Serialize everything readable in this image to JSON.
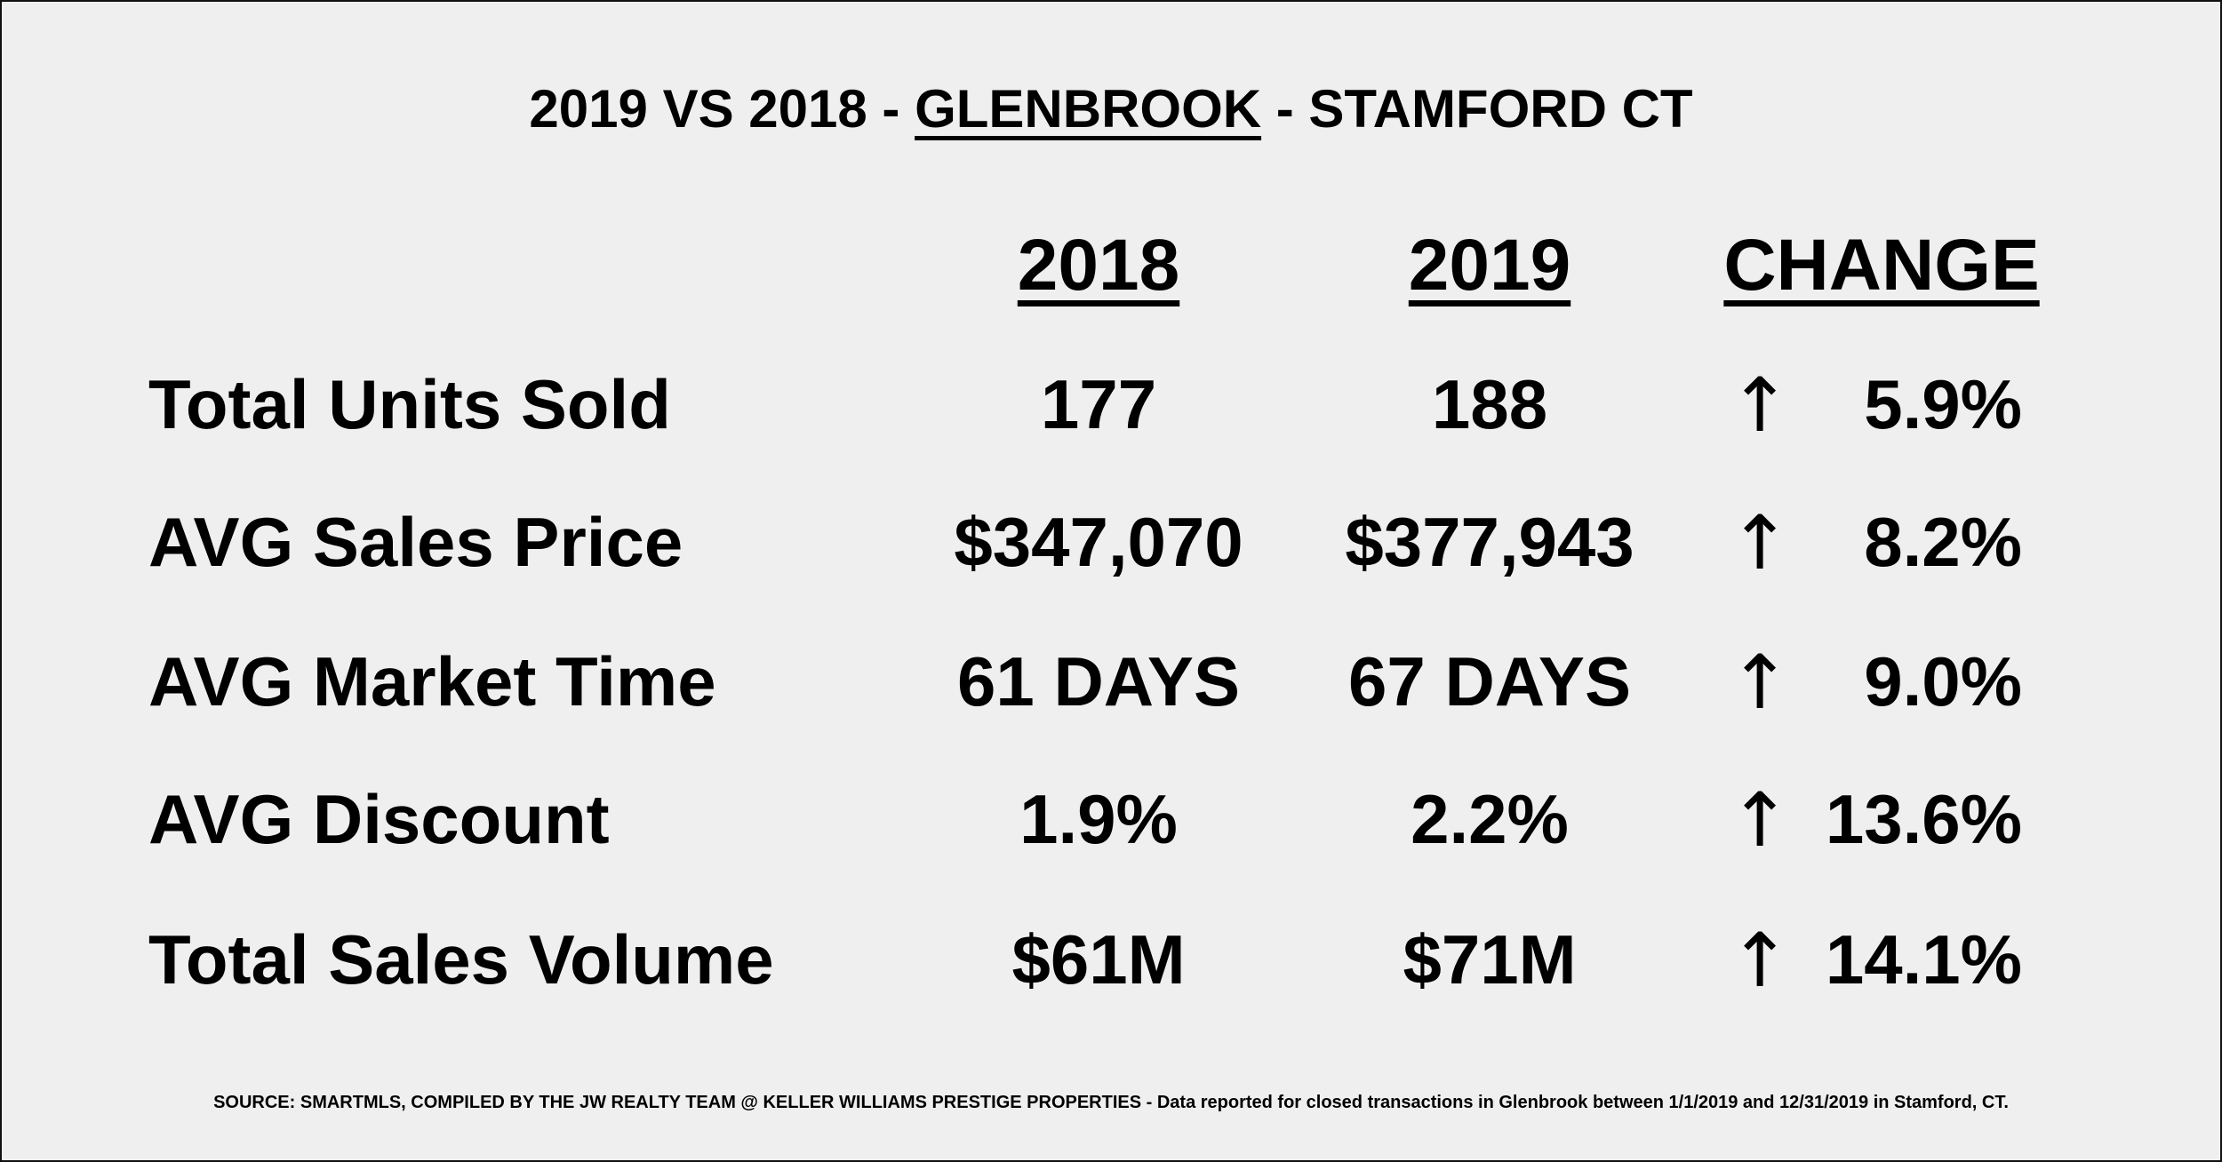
{
  "title": {
    "prefix": "2019 VS 2018 - ",
    "neighborhood": "GLENBROOK",
    "suffix": " - STAMFORD CT"
  },
  "headers": {
    "col_2018": "2018",
    "col_2019": "2019",
    "col_change": "CHANGE"
  },
  "rows": [
    {
      "label": "Total Units Sold",
      "v2018": "177",
      "v2019": "188",
      "arrow": "↑",
      "change": "5.9%"
    },
    {
      "label": "AVG Sales Price",
      "v2018": "$347,070",
      "v2019": "$377,943",
      "arrow": "↑",
      "change": "8.2%"
    },
    {
      "label": "AVG Market Time",
      "v2018": "61 DAYS",
      "v2019": "67 DAYS",
      "arrow": "↑",
      "change": "9.0%"
    },
    {
      "label": "AVG Discount",
      "v2018": "1.9%",
      "v2019": "2.2%",
      "arrow": "↑",
      "change": "13.6%"
    },
    {
      "label": "Total Sales Volume",
      "v2018": "$61M",
      "v2019": "$71M",
      "arrow": "↑",
      "change": "14.1%"
    }
  ],
  "footer": "SOURCE: SMARTMLS, COMPILED BY THE JW REALTY TEAM @ KELLER WILLIAMS PRESTIGE PROPERTIES - Data reported for closed transactions in Glenbrook between 1/1/2019 and 12/31/2019 in Stamford, CT."
}
